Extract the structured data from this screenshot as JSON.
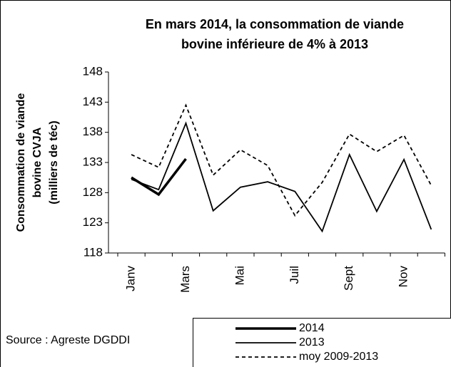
{
  "chart_data": {
    "type": "line",
    "title": [
      "En mars 2014,  la consommation de viande",
      "bovine inférieure de 4% à 2013"
    ],
    "y_label": [
      "Consommation de viande",
      "bovine CVJA",
      "(milliers de téc)"
    ],
    "source": "Source : Agreste DGDDI",
    "categories": [
      "Janv",
      null,
      "Mars",
      null,
      "Mai",
      null,
      "Juil",
      null,
      "Sept",
      null,
      "Nov",
      null
    ],
    "ylim": [
      118,
      148
    ],
    "yticks": [
      118,
      123,
      128,
      133,
      138,
      143,
      148
    ],
    "series": [
      {
        "name": "2014",
        "color": "#000000",
        "style": "thick",
        "values": [
          130.5,
          127.7,
          133.6,
          null,
          null,
          null,
          null,
          null,
          null,
          null,
          null,
          null
        ]
      },
      {
        "name": "2013",
        "color": "#000000",
        "style": "solid",
        "values": [
          130.2,
          128.5,
          139.5,
          125.0,
          128.9,
          129.8,
          128.2,
          121.6,
          134.3,
          124.9,
          133.5,
          121.9
        ]
      },
      {
        "name": "moy 2009-2013",
        "color": "#000000",
        "style": "dashed",
        "values": [
          134.3,
          132.2,
          142.5,
          130.9,
          135.1,
          132.5,
          124.2,
          129.7,
          137.7,
          134.8,
          137.5,
          129.2
        ]
      }
    ]
  }
}
